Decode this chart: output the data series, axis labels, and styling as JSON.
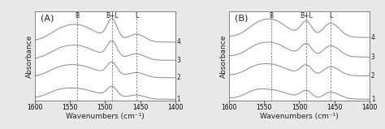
{
  "title_A": "(A)",
  "title_B": "(B)",
  "xlabel": "Wavenumbers (cm⁻¹)",
  "ylabel": "Absorbance",
  "xmin": 1400,
  "xmax": 1600,
  "dashed_lines": [
    1540,
    1490,
    1455
  ],
  "dashed_labels": [
    "B",
    "B+L",
    "L"
  ],
  "line_labels": [
    "4",
    "3",
    "2",
    "1"
  ],
  "offsets_A": [
    0.85,
    0.58,
    0.32,
    0.0
  ],
  "offsets_B": [
    0.85,
    0.58,
    0.32,
    0.0
  ],
  "line_color": "#888888",
  "bg_color": "#e8e8e8",
  "panel_bg": "#ffffff",
  "dashed_color": "#666666",
  "label_color": "#222222",
  "tick_label_size": 6,
  "axis_label_size": 7,
  "panel_label_size": 8
}
